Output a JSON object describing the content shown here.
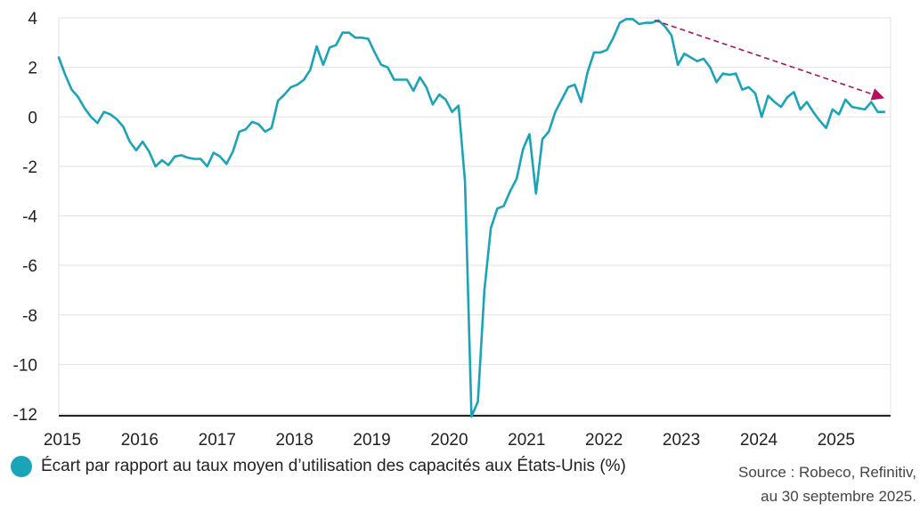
{
  "chart_data": {
    "type": "line",
    "title": "",
    "xlabel": "",
    "ylabel": "",
    "xlim": [
      2015.0,
      2025.75
    ],
    "ylim": [
      -12,
      4
    ],
    "yticks": [
      4,
      2,
      0,
      -2,
      -4,
      -6,
      -8,
      -10,
      -12
    ],
    "xticks": [
      "2015",
      "2016",
      "2017",
      "2018",
      "2019",
      "2020",
      "2021",
      "2022",
      "2023",
      "2024",
      "2025"
    ],
    "grid": "horizontal",
    "series": [
      {
        "name": "Écart par rapport au taux moyen d’utilisation des capacités aux États-Unis (%)",
        "color": "#1ba3b8",
        "x": [
          2015.0,
          2015.083,
          2015.167,
          2015.25,
          2015.333,
          2015.417,
          2015.5,
          2015.583,
          2015.667,
          2015.75,
          2015.833,
          2015.917,
          2016.0,
          2016.083,
          2016.167,
          2016.25,
          2016.333,
          2016.417,
          2016.5,
          2016.583,
          2016.667,
          2016.75,
          2016.833,
          2016.917,
          2017.0,
          2017.083,
          2017.167,
          2017.25,
          2017.333,
          2017.417,
          2017.5,
          2017.583,
          2017.667,
          2017.75,
          2017.833,
          2017.917,
          2018.0,
          2018.083,
          2018.167,
          2018.25,
          2018.333,
          2018.417,
          2018.5,
          2018.583,
          2018.667,
          2018.75,
          2018.833,
          2018.917,
          2019.0,
          2019.083,
          2019.167,
          2019.25,
          2019.333,
          2019.417,
          2019.5,
          2019.583,
          2019.667,
          2019.75,
          2019.833,
          2019.917,
          2020.0,
          2020.083,
          2020.167,
          2020.25,
          2020.333,
          2020.417,
          2020.5,
          2020.583,
          2020.667,
          2020.75,
          2020.833,
          2020.917,
          2021.0,
          2021.083,
          2021.167,
          2021.25,
          2021.333,
          2021.417,
          2021.5,
          2021.583,
          2021.667,
          2021.75,
          2021.833,
          2021.917,
          2022.0,
          2022.083,
          2022.167,
          2022.25,
          2022.333,
          2022.417,
          2022.5,
          2022.583,
          2022.667,
          2022.75,
          2022.833,
          2022.917,
          2023.0,
          2023.083,
          2023.167,
          2023.25,
          2023.333,
          2023.417,
          2023.5,
          2023.583,
          2023.667,
          2023.75,
          2023.833,
          2023.917,
          2024.0,
          2024.083,
          2024.167,
          2024.25,
          2024.333,
          2024.417,
          2024.5,
          2024.583,
          2024.667,
          2024.75,
          2024.833,
          2024.917,
          2025.0,
          2025.083,
          2025.167,
          2025.25,
          2025.333,
          2025.417,
          2025.5,
          2025.583,
          2025.667
        ],
        "values": [
          2.4,
          1.7,
          1.1,
          0.8,
          0.35,
          0.0,
          -0.25,
          0.2,
          0.1,
          -0.1,
          -0.4,
          -1.0,
          -1.35,
          -1.0,
          -1.4,
          -2.0,
          -1.75,
          -1.95,
          -1.6,
          -1.55,
          -1.65,
          -1.7,
          -1.7,
          -2.0,
          -1.45,
          -1.6,
          -1.9,
          -1.4,
          -0.6,
          -0.5,
          -0.2,
          -0.3,
          -0.6,
          -0.45,
          0.65,
          0.9,
          1.2,
          1.3,
          1.5,
          1.9,
          2.85,
          2.1,
          2.8,
          2.9,
          3.4,
          3.4,
          3.2,
          3.2,
          3.15,
          2.6,
          2.1,
          2.0,
          1.5,
          1.5,
          1.5,
          1.05,
          1.6,
          1.2,
          0.5,
          0.9,
          0.7,
          0.2,
          0.45,
          -2.6,
          -12.1,
          -11.5,
          -7.0,
          -4.5,
          -3.7,
          -3.6,
          -3.0,
          -2.5,
          -1.3,
          -0.7,
          -3.1,
          -0.9,
          -0.6,
          0.2,
          0.7,
          1.2,
          1.3,
          0.6,
          1.8,
          2.6,
          2.6,
          2.7,
          3.2,
          3.8,
          3.95,
          3.95,
          3.75,
          3.8,
          3.8,
          3.9,
          3.65,
          3.3,
          2.1,
          2.55,
          2.4,
          2.25,
          2.35,
          2.0,
          1.4,
          1.75,
          1.7,
          1.75,
          1.1,
          1.2,
          0.95,
          0.0,
          0.85,
          0.6,
          0.4,
          0.8,
          1.0,
          0.3,
          0.6,
          0.2,
          -0.15,
          -0.45,
          0.3,
          0.1,
          0.7,
          0.4,
          0.35,
          0.3,
          0.6,
          0.2,
          0.2
        ]
      }
    ],
    "annotations": [
      {
        "type": "trend-arrow",
        "color": "#b0125b",
        "from": {
          "x": 2022.7,
          "y": 3.9
        },
        "to": {
          "x": 2025.67,
          "y": 0.75
        }
      }
    ]
  },
  "legend": {
    "label": "Écart par rapport au taux moyen d’utilisation des capacités aux États-Unis (%)",
    "color": "#1ba3b8"
  },
  "source": {
    "line1": "Source : Robeco, Refinitiv,",
    "line2": "au 30 septembre 2025."
  }
}
